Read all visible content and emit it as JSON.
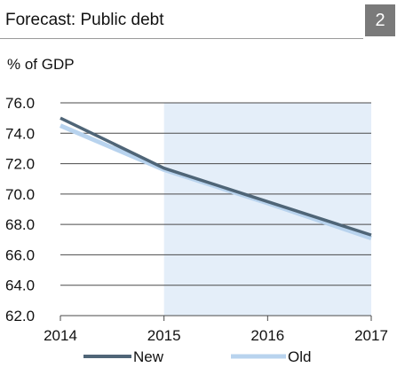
{
  "header": {
    "title": "Forecast: Public debt",
    "badge": "2"
  },
  "chart_data": {
    "type": "line",
    "title": "Forecast: Public debt",
    "ylabel": "% of GDP",
    "xlabel": "",
    "xlim": [
      2014,
      2017
    ],
    "ylim": [
      62,
      76
    ],
    "yticks": [
      "76.0",
      "74.0",
      "72.0",
      "70.0",
      "68.0",
      "66.0",
      "64.0",
      "62.0"
    ],
    "ytick_values": [
      76,
      74,
      72,
      70,
      68,
      66,
      64,
      62
    ],
    "xticks": [
      "2014",
      "2015",
      "2016",
      "2017"
    ],
    "xtick_values": [
      2014,
      2015,
      2016,
      2017
    ],
    "grid": true,
    "forecast_shading_start": 2015,
    "legend_placement": "bottom",
    "series": [
      {
        "name": "Old",
        "color": "#b8d3ee",
        "x": [
          2014,
          2015,
          2016,
          2017
        ],
        "y": [
          74.5,
          71.6,
          69.4,
          67.1
        ]
      },
      {
        "name": "New",
        "color": "#4f6577",
        "x": [
          2014,
          2015,
          2016,
          2017
        ],
        "y": [
          75.0,
          71.7,
          69.5,
          67.3
        ]
      }
    ],
    "shading_color": "#e4eef9"
  }
}
